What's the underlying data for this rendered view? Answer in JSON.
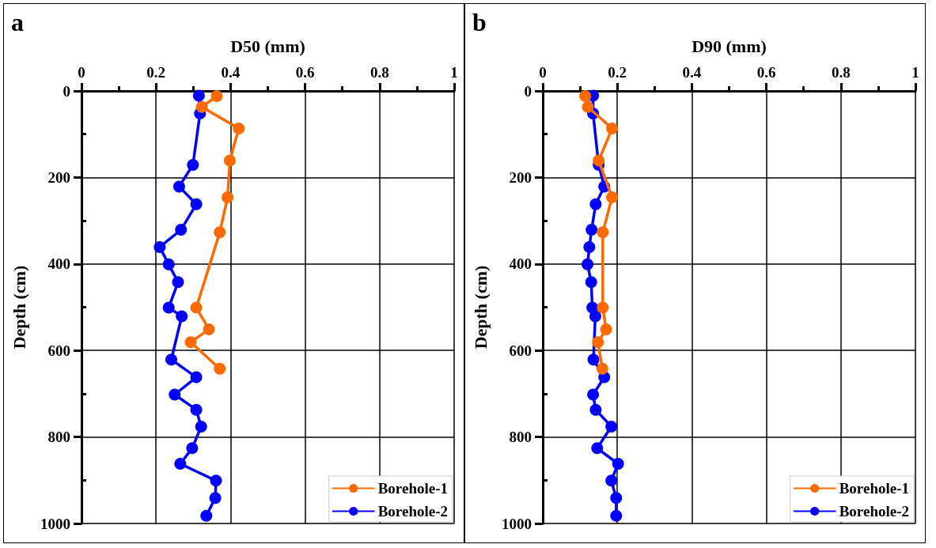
{
  "chart_data": [
    {
      "type": "line",
      "title": "a",
      "xlabel": "D50 (mm)",
      "ylabel": "Depth (cm)",
      "orientation": "horizontal",
      "xlim": [
        0,
        1
      ],
      "ylim": [
        1000,
        0
      ],
      "xticks": [
        0,
        {
          "value": 0.1,
          "label": null
        },
        0.2,
        {
          "value": 0.3,
          "label": null
        },
        0.4,
        {
          "value": 0.5,
          "label": null
        },
        0.6,
        {
          "value": 0.7,
          "label": null
        },
        0.8,
        {
          "value": 0.9,
          "label": null
        },
        1
      ],
      "yticks": [
        0,
        {
          "value": 100,
          "label": null
        },
        200,
        {
          "value": 300,
          "label": null
        },
        400,
        {
          "value": 500,
          "label": null
        },
        600,
        {
          "value": 700,
          "label": null
        },
        800,
        {
          "value": 900,
          "label": null
        },
        1000
      ],
      "grid": true,
      "legend": "bottom right",
      "marker": "circle",
      "line_style": "solid",
      "series": [
        {
          "name": "Borehole-1",
          "color": "#ff6a00",
          "x": [
            12,
            37,
            87,
            161,
            246,
            327,
            501,
            551,
            581,
            642
          ],
          "values": [
            0.363,
            0.323,
            0.422,
            0.398,
            0.392,
            0.371,
            0.308,
            0.342,
            0.293,
            0.371
          ]
        },
        {
          "name": "Borehole-2",
          "color": "#0000ff",
          "x": [
            11,
            52,
            171,
            221,
            262,
            321,
            361,
            401,
            442,
            501,
            521,
            621,
            662,
            702,
            737,
            776,
            826,
            862,
            901,
            941,
            982
          ],
          "values": [
            0.315,
            0.318,
            0.299,
            0.262,
            0.308,
            0.267,
            0.21,
            0.234,
            0.259,
            0.234,
            0.269,
            0.241,
            0.308,
            0.25,
            0.308,
            0.321,
            0.297,
            0.265,
            0.361,
            0.359,
            0.335
          ]
        }
      ]
    },
    {
      "type": "line",
      "title": "b",
      "xlabel": "D90 (mm)",
      "ylabel": "Depth (cm)",
      "orientation": "horizontal",
      "xlim": [
        0,
        1
      ],
      "ylim": [
        1000,
        0
      ],
      "xticks": [
        0,
        {
          "value": 0.1,
          "label": null
        },
        0.2,
        {
          "value": 0.3,
          "label": null
        },
        0.4,
        {
          "value": 0.5,
          "label": null
        },
        0.6,
        {
          "value": 0.7,
          "label": null
        },
        0.8,
        {
          "value": 0.9,
          "label": null
        },
        1
      ],
      "yticks": [
        0,
        {
          "value": 100,
          "label": null
        },
        200,
        {
          "value": 300,
          "label": null
        },
        400,
        {
          "value": 500,
          "label": null
        },
        600,
        {
          "value": 700,
          "label": null
        },
        800,
        {
          "value": 900,
          "label": null
        },
        1000
      ],
      "grid": true,
      "legend": "bottom right",
      "marker": "circle",
      "line_style": "solid",
      "series": [
        {
          "name": "Borehole-1",
          "color": "#ff6a00",
          "x": [
            12,
            37,
            87,
            161,
            246,
            327,
            501,
            551,
            581,
            642
          ],
          "values": [
            0.114,
            0.121,
            0.186,
            0.15,
            0.186,
            0.161,
            0.161,
            0.17,
            0.148,
            0.16
          ]
        },
        {
          "name": "Borehole-2",
          "color": "#0000ff",
          "x": [
            11,
            52,
            171,
            221,
            262,
            321,
            361,
            401,
            442,
            501,
            521,
            621,
            662,
            702,
            737,
            776,
            826,
            862,
            901,
            941,
            982
          ],
          "values": [
            0.135,
            0.135,
            0.15,
            0.165,
            0.142,
            0.131,
            0.125,
            0.12,
            0.13,
            0.133,
            0.141,
            0.136,
            0.165,
            0.135,
            0.142,
            0.184,
            0.146,
            0.202,
            0.184,
            0.197,
            0.197
          ]
        }
      ]
    }
  ]
}
